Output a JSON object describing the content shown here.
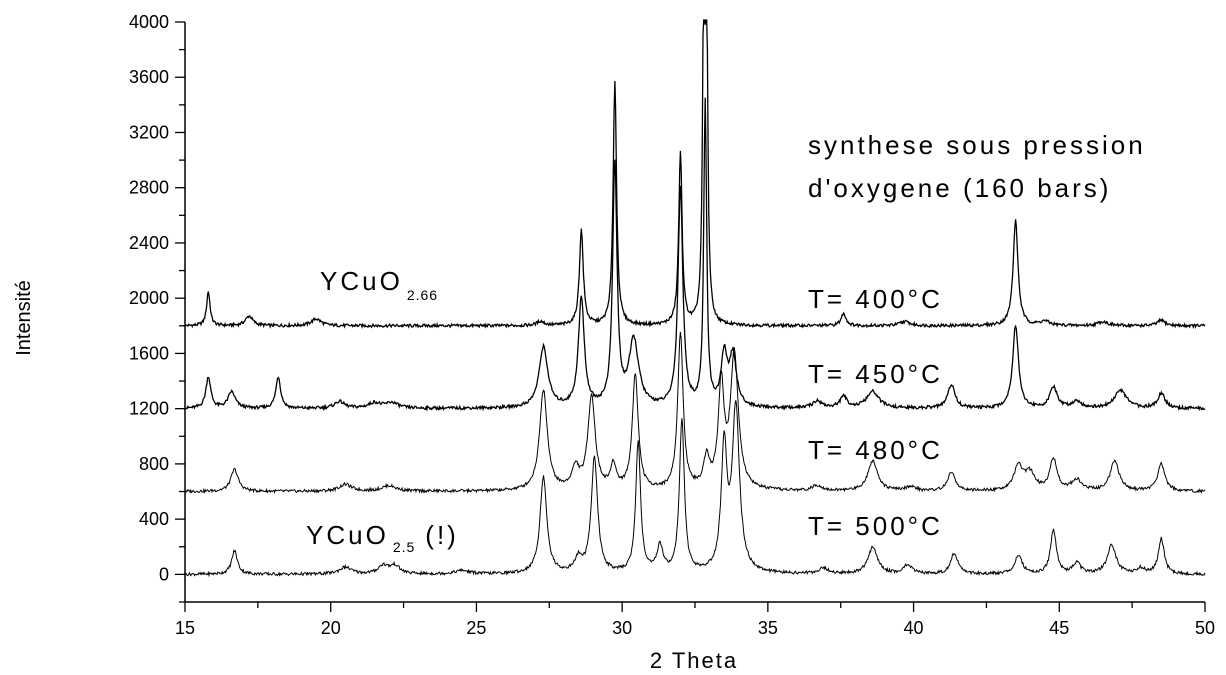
{
  "chart_data": {
    "type": "line",
    "xlabel": "2 Theta",
    "ylabel": "Intensité",
    "xlim": [
      15,
      50
    ],
    "ylim": [
      -200,
      4000
    ],
    "x_ticks": [
      15,
      20,
      25,
      30,
      35,
      40,
      45,
      50
    ],
    "y_ticks": [
      0,
      400,
      800,
      1200,
      1600,
      2000,
      2400,
      2800,
      3200,
      3600,
      4000
    ],
    "grid": false,
    "legend": "none",
    "annotations": {
      "title_line1": "synthese sous pression",
      "title_line2": "d'oxygene (160 bars)",
      "label_top_main": "YCuO",
      "label_top_sub": "2.66",
      "label_bottom_main": "YCuO",
      "label_bottom_sub": "2.5",
      "label_bottom_suffix": "(!)"
    },
    "series": [
      {
        "name": "T= 400°C",
        "baseline": 1800,
        "color": "#000000",
        "peaks": [
          [
            15.8,
            250,
            0.07
          ],
          [
            17.2,
            70,
            0.15
          ],
          [
            19.5,
            50,
            0.2
          ],
          [
            27.2,
            30,
            0.15
          ],
          [
            28.6,
            690,
            0.08
          ],
          [
            29.75,
            1770,
            0.07
          ],
          [
            32.0,
            1240,
            0.07
          ],
          [
            32.8,
            2250,
            0.05
          ],
          [
            32.9,
            2100,
            0.05
          ],
          [
            37.6,
            90,
            0.1
          ],
          [
            39.7,
            30,
            0.2
          ],
          [
            43.5,
            760,
            0.1
          ],
          [
            44.5,
            30,
            0.2
          ],
          [
            46.5,
            30,
            0.2
          ],
          [
            48.5,
            40,
            0.15
          ]
        ]
      },
      {
        "name": "T= 450°C",
        "baseline": 1200,
        "color": "#000000",
        "peaks": [
          [
            15.8,
            230,
            0.1
          ],
          [
            16.6,
            120,
            0.15
          ],
          [
            18.2,
            230,
            0.1
          ],
          [
            20.3,
            50,
            0.2
          ],
          [
            21.5,
            40,
            0.25
          ],
          [
            22.1,
            40,
            0.25
          ],
          [
            27.3,
            440,
            0.18
          ],
          [
            28.6,
            790,
            0.12
          ],
          [
            29.75,
            1750,
            0.09
          ],
          [
            30.4,
            480,
            0.2
          ],
          [
            32.0,
            1580,
            0.1
          ],
          [
            32.85,
            2200,
            0.06
          ],
          [
            33.5,
            360,
            0.12
          ],
          [
            33.8,
            360,
            0.15
          ],
          [
            36.7,
            50,
            0.2
          ],
          [
            37.6,
            80,
            0.15
          ],
          [
            38.6,
            120,
            0.25
          ],
          [
            41.3,
            170,
            0.15
          ],
          [
            43.5,
            600,
            0.12
          ],
          [
            44.8,
            150,
            0.15
          ],
          [
            45.6,
            50,
            0.2
          ],
          [
            47.1,
            130,
            0.25
          ],
          [
            48.5,
            110,
            0.15
          ]
        ]
      },
      {
        "name": "T= 480°C",
        "baseline": 600,
        "color": "#000000",
        "peaks": [
          [
            16.7,
            160,
            0.15
          ],
          [
            20.5,
            50,
            0.25
          ],
          [
            22.0,
            40,
            0.3
          ],
          [
            27.3,
            730,
            0.16
          ],
          [
            28.4,
            150,
            0.15
          ],
          [
            28.95,
            680,
            0.15
          ],
          [
            29.7,
            170,
            0.12
          ],
          [
            30.45,
            840,
            0.12
          ],
          [
            32.0,
            1140,
            0.11
          ],
          [
            32.9,
            220,
            0.12
          ],
          [
            33.4,
            740,
            0.12
          ],
          [
            33.85,
            980,
            0.16
          ],
          [
            36.7,
            40,
            0.2
          ],
          [
            38.6,
            220,
            0.2
          ],
          [
            39.9,
            30,
            0.2
          ],
          [
            41.3,
            140,
            0.15
          ],
          [
            43.6,
            170,
            0.2
          ],
          [
            44.0,
            120,
            0.2
          ],
          [
            44.8,
            230,
            0.15
          ],
          [
            45.6,
            80,
            0.2
          ],
          [
            46.9,
            220,
            0.18
          ],
          [
            48.5,
            200,
            0.15
          ]
        ]
      },
      {
        "name": "T= 500°C",
        "baseline": 0,
        "color": "#000000",
        "peaks": [
          [
            16.7,
            170,
            0.12
          ],
          [
            20.5,
            50,
            0.25
          ],
          [
            21.8,
            60,
            0.2
          ],
          [
            22.2,
            60,
            0.2
          ],
          [
            24.5,
            25,
            0.3
          ],
          [
            27.3,
            700,
            0.14
          ],
          [
            28.5,
            100,
            0.15
          ],
          [
            29.05,
            840,
            0.13
          ],
          [
            30.55,
            950,
            0.1
          ],
          [
            31.3,
            190,
            0.12
          ],
          [
            32.05,
            1110,
            0.1
          ],
          [
            33.5,
            880,
            0.12
          ],
          [
            33.9,
            1180,
            0.15
          ],
          [
            36.9,
            40,
            0.2
          ],
          [
            38.6,
            190,
            0.2
          ],
          [
            39.8,
            70,
            0.15
          ],
          [
            41.4,
            150,
            0.15
          ],
          [
            43.6,
            140,
            0.15
          ],
          [
            44.8,
            320,
            0.12
          ],
          [
            45.6,
            80,
            0.15
          ],
          [
            46.8,
            210,
            0.18
          ],
          [
            47.8,
            40,
            0.15
          ],
          [
            48.5,
            260,
            0.12
          ]
        ]
      }
    ]
  }
}
